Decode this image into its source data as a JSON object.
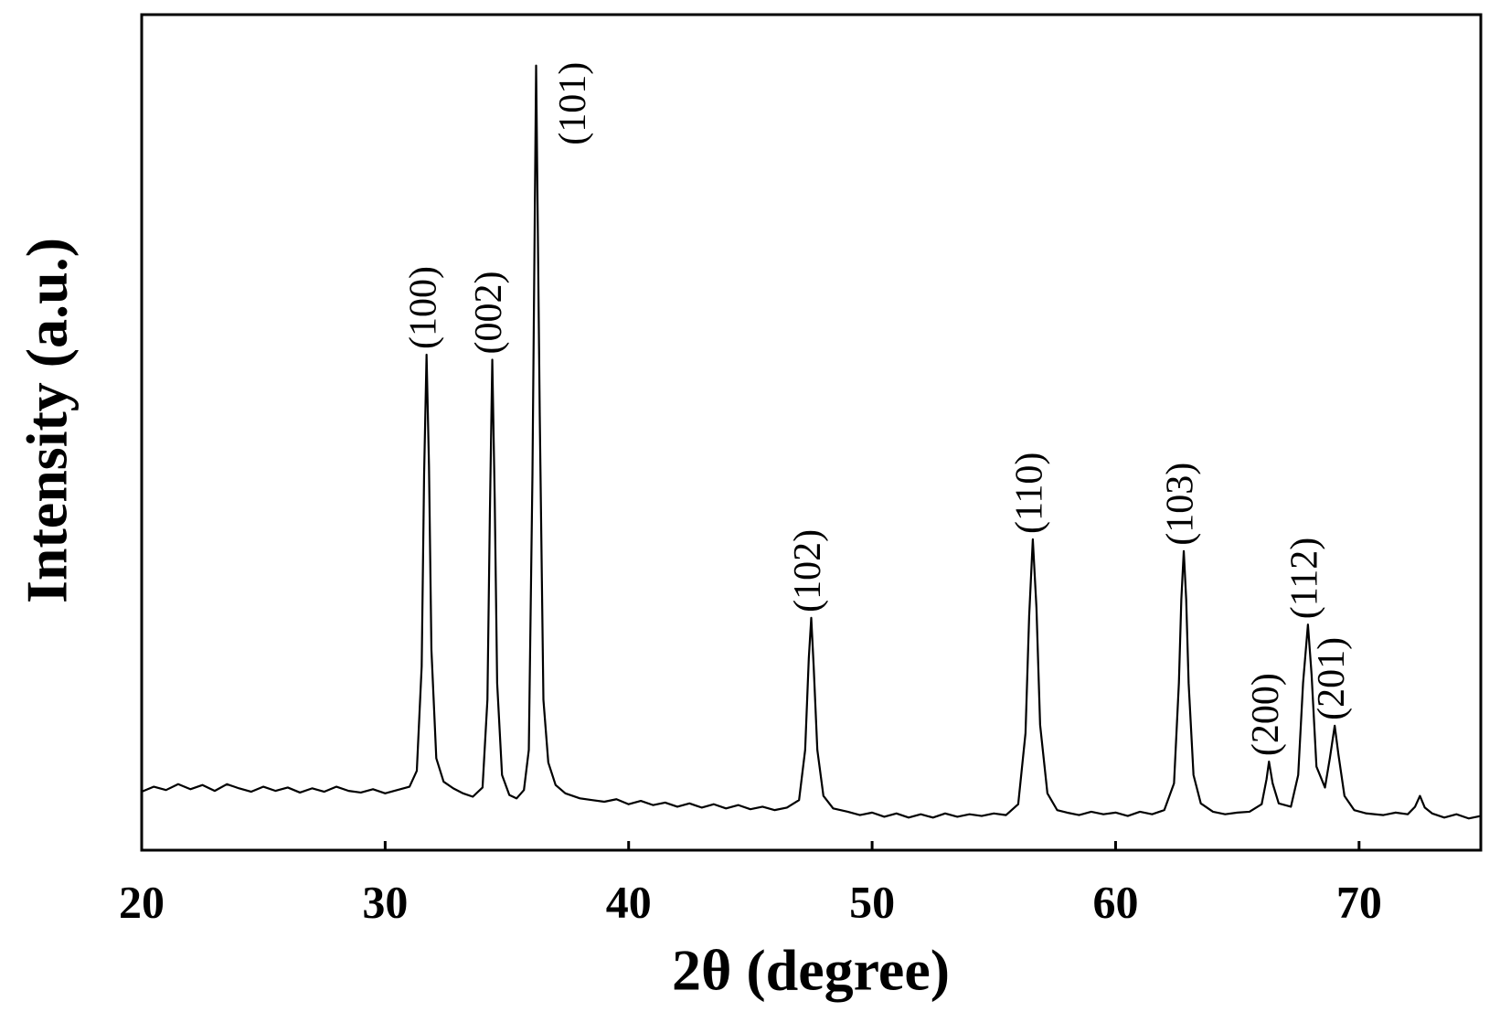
{
  "chart_data": {
    "type": "line",
    "xlabel": "2θ (degree)",
    "ylabel": "Intensity (a.u.)",
    "xlim": [
      20,
      75
    ],
    "ylim": [
      0,
      100
    ],
    "xticks": [
      20,
      30,
      40,
      50,
      60,
      70
    ],
    "x": [
      20,
      20.5,
      21,
      21.5,
      22,
      22.5,
      23,
      23.5,
      24,
      24.5,
      25,
      25.5,
      26,
      26.5,
      27,
      27.5,
      28,
      28.5,
      29,
      29.5,
      30,
      30.5,
      31,
      31.3,
      31.5,
      31.6,
      31.7,
      31.8,
      31.9,
      32.1,
      32.4,
      32.8,
      33.2,
      33.6,
      34.0,
      34.2,
      34.3,
      34.4,
      34.5,
      34.6,
      34.8,
      35.1,
      35.4,
      35.7,
      35.9,
      36.05,
      36.2,
      36.35,
      36.5,
      36.7,
      37.0,
      37.4,
      38,
      38.5,
      39,
      39.5,
      40,
      40.5,
      41,
      41.5,
      42,
      42.5,
      43,
      43.5,
      44,
      44.5,
      45,
      45.5,
      46,
      46.5,
      47,
      47.25,
      47.4,
      47.5,
      47.6,
      47.75,
      48,
      48.4,
      49,
      49.5,
      50,
      50.5,
      51,
      51.5,
      52,
      52.5,
      53,
      53.5,
      54,
      54.5,
      55,
      55.5,
      56,
      56.3,
      56.45,
      56.6,
      56.75,
      56.9,
      57.2,
      57.6,
      58,
      58.5,
      59,
      59.5,
      60,
      60.5,
      61,
      61.5,
      62,
      62.4,
      62.6,
      62.7,
      62.8,
      62.9,
      63.0,
      63.2,
      63.5,
      64,
      64.5,
      65,
      65.5,
      66,
      66.2,
      66.3,
      66.45,
      66.7,
      67.2,
      67.5,
      67.7,
      67.9,
      68.05,
      68.25,
      68.6,
      68.8,
      69.0,
      69.15,
      69.4,
      69.8,
      70.3,
      71,
      71.5,
      72,
      72.3,
      72.5,
      72.7,
      73,
      73.5,
      74,
      74.5,
      75
    ],
    "series": [
      {
        "color": "#000000",
        "values": [
          7.0,
          7.6,
          7.2,
          7.9,
          7.3,
          7.8,
          7.1,
          7.9,
          7.4,
          7.0,
          7.6,
          7.1,
          7.5,
          6.9,
          7.4,
          7.0,
          7.6,
          7.1,
          6.9,
          7.3,
          6.8,
          7.2,
          7.6,
          9.5,
          22,
          45,
          59.3,
          46,
          24,
          11,
          8.2,
          7.4,
          6.8,
          6.4,
          7.5,
          18,
          40,
          58.7,
          42,
          20,
          9,
          6.6,
          6.2,
          7.2,
          12,
          45,
          93.9,
          52,
          18,
          10.5,
          7.8,
          6.8,
          6.2,
          6.0,
          5.8,
          6.1,
          5.5,
          5.9,
          5.4,
          5.7,
          5.2,
          5.6,
          5.1,
          5.5,
          5.0,
          5.4,
          4.9,
          5.2,
          4.8,
          5.1,
          6.0,
          12,
          23,
          27.8,
          22,
          12,
          6.5,
          5.0,
          4.6,
          4.2,
          4.5,
          4.0,
          4.4,
          3.9,
          4.3,
          3.9,
          4.4,
          4.0,
          4.3,
          4.1,
          4.4,
          4.2,
          5.5,
          14,
          28,
          37.2,
          29,
          15,
          6.8,
          4.8,
          4.5,
          4.2,
          4.6,
          4.3,
          4.5,
          4.1,
          4.6,
          4.3,
          4.8,
          8,
          20,
          30,
          35.8,
          30,
          20,
          9,
          5.6,
          4.6,
          4.3,
          4.5,
          4.6,
          5.5,
          8.5,
          10.6,
          8.0,
          5.6,
          5.2,
          9,
          20,
          27,
          21,
          10,
          7.5,
          11,
          14.9,
          11.5,
          6.5,
          4.8,
          4.4,
          4.2,
          4.5,
          4.3,
          5.2,
          6.5,
          5.1,
          4.4,
          3.9,
          4.3,
          3.8,
          4.1
        ]
      }
    ],
    "annotations": [
      {
        "text": "(100)",
        "x": 31.7
      },
      {
        "text": "(002)",
        "x": 34.4
      },
      {
        "text": "(101)",
        "x": 36.2
      },
      {
        "text": "(102)",
        "x": 47.5
      },
      {
        "text": "(110)",
        "x": 56.6
      },
      {
        "text": "(103)",
        "x": 62.8
      },
      {
        "text": "(200)",
        "x": 66.3
      },
      {
        "text": "(112)",
        "x": 67.9
      },
      {
        "text": "(201)",
        "x": 69.0
      }
    ]
  }
}
